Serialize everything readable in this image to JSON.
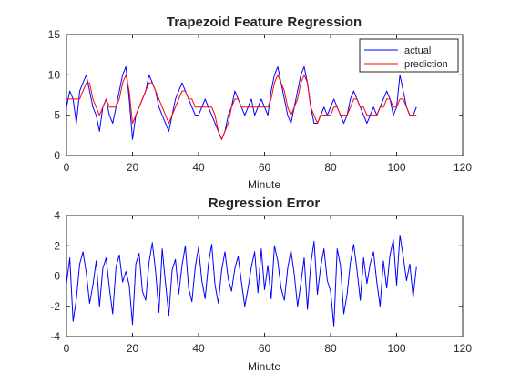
{
  "chart_data": [
    {
      "type": "line",
      "title": "Trapezoid Feature Regression",
      "xlabel": "Minute",
      "ylabel": "",
      "xlim": [
        0,
        120
      ],
      "ylim": [
        0,
        15
      ],
      "xticks": [
        "0",
        "20",
        "40",
        "60",
        "80",
        "100",
        "120"
      ],
      "yticks": [
        "0",
        "5",
        "10",
        "15"
      ],
      "legend_position": "top-right",
      "series": [
        {
          "name": "actual",
          "color": "#0000ff",
          "x": [
            0,
            1,
            2,
            3,
            4,
            5,
            6,
            7,
            8,
            9,
            10,
            11,
            12,
            13,
            14,
            15,
            16,
            17,
            18,
            19,
            20,
            21,
            22,
            23,
            24,
            25,
            26,
            27,
            28,
            29,
            30,
            31,
            32,
            33,
            34,
            35,
            36,
            37,
            38,
            39,
            40,
            41,
            42,
            43,
            44,
            45,
            46,
            47,
            48,
            49,
            50,
            51,
            52,
            53,
            54,
            55,
            56,
            57,
            58,
            59,
            60,
            61,
            62,
            63,
            64,
            65,
            66,
            67,
            68,
            69,
            70,
            71,
            72,
            73,
            74,
            75,
            76,
            77,
            78,
            79,
            80,
            81,
            82,
            83,
            84,
            85,
            86,
            87,
            88,
            89,
            90,
            91,
            92,
            93,
            94,
            95,
            96,
            97,
            98,
            99,
            100,
            101,
            102,
            103,
            104,
            105,
            106
          ],
          "y": [
            6,
            8,
            7,
            4,
            8,
            9,
            10,
            8,
            6,
            5,
            3,
            6,
            7,
            5,
            4,
            6,
            8,
            10,
            11,
            7,
            2,
            5,
            6,
            7,
            8,
            10,
            9,
            8,
            6,
            5,
            4,
            3,
            5,
            7,
            8,
            9,
            8,
            7,
            6,
            5,
            5,
            6,
            7,
            6,
            5,
            4,
            3,
            2,
            3,
            5,
            6,
            8,
            7,
            6,
            5,
            6,
            7,
            5,
            6,
            7,
            6,
            5,
            8,
            10,
            11,
            9,
            7,
            5,
            4,
            6,
            8,
            10,
            11,
            9,
            6,
            4,
            4,
            5,
            6,
            5,
            6,
            7,
            6,
            5,
            4,
            5,
            7,
            8,
            7,
            6,
            5,
            4,
            5,
            6,
            5,
            6,
            7,
            8,
            7,
            5,
            6,
            10,
            8,
            6,
            5,
            5,
            6
          ]
        },
        {
          "name": "prediction",
          "color": "#ff0000",
          "x": [
            0,
            1,
            2,
            3,
            4,
            5,
            6,
            7,
            8,
            9,
            10,
            11,
            12,
            13,
            14,
            15,
            16,
            17,
            18,
            19,
            20,
            21,
            22,
            23,
            24,
            25,
            26,
            27,
            28,
            29,
            30,
            31,
            32,
            33,
            34,
            35,
            36,
            37,
            38,
            39,
            40,
            41,
            42,
            43,
            44,
            45,
            46,
            47,
            48,
            49,
            50,
            51,
            52,
            53,
            54,
            55,
            56,
            57,
            58,
            59,
            60,
            61,
            62,
            63,
            64,
            65,
            66,
            67,
            68,
            69,
            70,
            71,
            72,
            73,
            74,
            75,
            76,
            77,
            78,
            79,
            80,
            81,
            82,
            83,
            84,
            85,
            86,
            87,
            88,
            89,
            90,
            91,
            92,
            93,
            94,
            95,
            96,
            97,
            98,
            99,
            100,
            101,
            102,
            103,
            104,
            105,
            106
          ],
          "y": [
            7,
            7,
            7,
            7,
            7,
            8,
            9,
            9,
            7,
            6,
            5,
            6,
            7,
            6,
            6,
            6,
            7,
            9,
            10,
            8,
            4,
            5,
            6,
            7,
            8,
            9,
            9,
            8,
            7,
            6,
            5,
            4,
            5,
            6,
            7,
            8,
            8,
            7,
            7,
            6,
            6,
            6,
            6,
            6,
            6,
            5,
            3,
            2,
            3,
            4,
            6,
            7,
            7,
            6,
            6,
            6,
            6,
            6,
            6,
            6,
            6,
            6,
            7,
            9,
            10,
            9,
            8,
            6,
            5,
            6,
            7,
            9,
            10,
            9,
            6,
            5,
            4,
            5,
            5,
            5,
            5,
            6,
            6,
            5,
            5,
            5,
            6,
            7,
            7,
            6,
            6,
            5,
            5,
            5,
            5,
            6,
            6,
            7,
            7,
            6,
            6,
            7,
            7,
            6,
            5,
            5,
            5
          ]
        }
      ]
    },
    {
      "type": "line",
      "title": "Regression Error",
      "xlabel": "Minute",
      "ylabel": "",
      "xlim": [
        0,
        120
      ],
      "ylim": [
        -4,
        4
      ],
      "xticks": [
        "0",
        "20",
        "40",
        "60",
        "80",
        "100",
        "120"
      ],
      "yticks": [
        "-4",
        "-2",
        "0",
        "2",
        "4"
      ],
      "series": [
        {
          "color": "#0000ff",
          "x": [
            0,
            1,
            2,
            3,
            4,
            5,
            6,
            7,
            8,
            9,
            10,
            11,
            12,
            13,
            14,
            15,
            16,
            17,
            18,
            19,
            20,
            21,
            22,
            23,
            24,
            25,
            26,
            27,
            28,
            29,
            30,
            31,
            32,
            33,
            34,
            35,
            36,
            37,
            38,
            39,
            40,
            41,
            42,
            43,
            44,
            45,
            46,
            47,
            48,
            49,
            50,
            51,
            52,
            53,
            54,
            55,
            56,
            57,
            58,
            59,
            60,
            61,
            62,
            63,
            64,
            65,
            66,
            67,
            68,
            69,
            70,
            71,
            72,
            73,
            74,
            75,
            76,
            77,
            78,
            79,
            80,
            81,
            82,
            83,
            84,
            85,
            86,
            87,
            88,
            89,
            90,
            91,
            92,
            93,
            94,
            95,
            96,
            97,
            98,
            99,
            100,
            101,
            102,
            103,
            104,
            105,
            106
          ],
          "y": [
            -0.5,
            1.2,
            -3.0,
            -1.5,
            0.8,
            1.6,
            0.2,
            -1.8,
            -0.6,
            1.0,
            -2.0,
            0.5,
            1.2,
            -0.8,
            -2.5,
            0.6,
            1.4,
            -0.4,
            0.3,
            -0.6,
            -3.2,
            0.8,
            1.5,
            -1.0,
            -1.6,
            0.9,
            2.2,
            0.3,
            -2.4,
            1.8,
            -0.5,
            -2.6,
            0.4,
            1.1,
            -1.2,
            0.7,
            2.0,
            -0.8,
            -1.7,
            0.6,
            1.9,
            -0.3,
            -1.5,
            0.8,
            2.1,
            -0.6,
            -1.8,
            0.4,
            1.6,
            -0.2,
            -1.0,
            0.5,
            1.3,
            -0.4,
            -2.0,
            -0.8,
            0.6,
            1.6,
            -1.1,
            1.8,
            -0.9,
            0.7,
            -1.5,
            2.0,
            1.0,
            -0.8,
            -1.6,
            0.5,
            1.7,
            0.1,
            -2.0,
            -0.5,
            1.2,
            -2.2,
            0.8,
            2.3,
            -1.2,
            0.6,
            1.8,
            -0.3,
            -1.0,
            -3.3,
            1.8,
            0.7,
            -2.5,
            -1.2,
            0.9,
            2.1,
            0.4,
            -1.6,
            1.2,
            -0.5,
            0.8,
            1.6,
            -0.4,
            -2.0,
            1.0,
            -0.8,
            1.4,
            2.4,
            -0.6,
            2.7,
            1.3,
            -0.3,
            0.8,
            -1.4,
            0.6
          ]
        }
      ]
    }
  ]
}
